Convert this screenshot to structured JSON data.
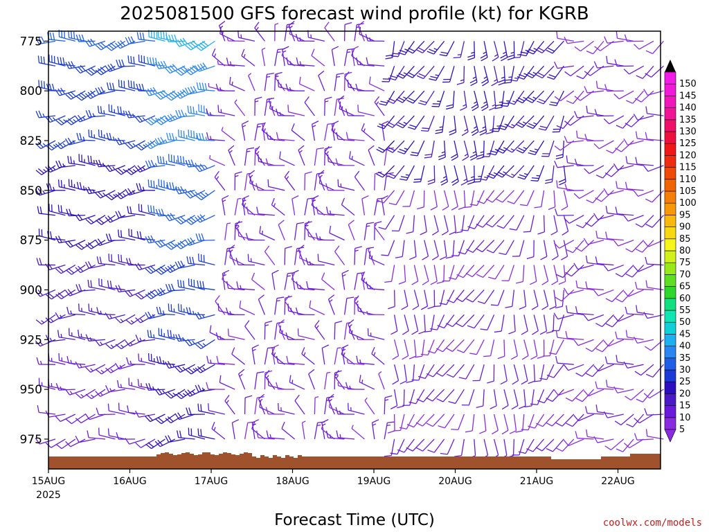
{
  "chart_data": {
    "type": "wind-barb profile",
    "title": "2025081500 GFS forecast wind profile (kt) for KGRB",
    "xlabel": "Forecast Time (UTC)",
    "x_ticks": [
      "15AUG",
      "16AUG",
      "17AUG",
      "18AUG",
      "19AUG",
      "20AUG",
      "21AUG",
      "22AUG"
    ],
    "x_year": "2025",
    "y_ticks": [
      775,
      800,
      825,
      850,
      875,
      900,
      925,
      950,
      975
    ],
    "ylim": [
      770,
      990
    ],
    "y_reversed": true,
    "colorbar_levels": [
      5,
      10,
      15,
      20,
      25,
      30,
      35,
      40,
      45,
      50,
      55,
      60,
      65,
      70,
      75,
      80,
      85,
      90,
      95,
      100,
      105,
      110,
      115,
      120,
      125,
      130,
      135,
      140,
      145,
      150
    ],
    "colorbar_colors": [
      "#8a2be2",
      "#6a1bd9",
      "#4a1ac8",
      "#2c10c0",
      "#1a3ad8",
      "#1f5fe8",
      "#2a86f0",
      "#1fb0f0",
      "#10d0d8",
      "#10e6b4",
      "#10e080",
      "#2cd82c",
      "#5ee020",
      "#98e81a",
      "#d2f01a",
      "#f6f61a",
      "#f8d812",
      "#f8b80c",
      "#f89808",
      "#f47e06",
      "#f06404",
      "#f04a08",
      "#f02c10",
      "#f01818",
      "#f01040",
      "#f0106a",
      "#f01496",
      "#f016bc",
      "#f01ad8",
      "#f21ee8"
    ],
    "terrain_color": "#a0522d",
    "wind_barbs_note": ""
  },
  "footer": {
    "credit": "coolwx.com/models"
  }
}
